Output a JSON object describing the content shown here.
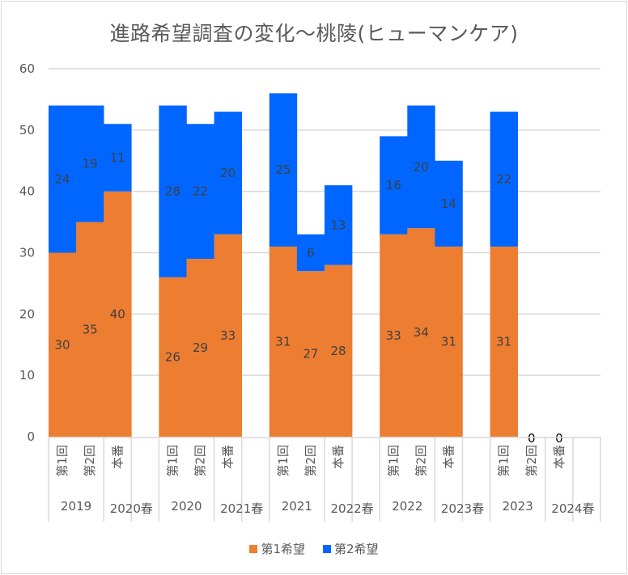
{
  "chart_data": {
    "type": "bar",
    "stacked": true,
    "title": "進路希望調査の変化～桃陵(ヒューマンケア)",
    "xlabel": "",
    "ylabel": "",
    "ylim": [
      0,
      60
    ],
    "yticks": [
      0,
      10,
      20,
      30,
      40,
      50,
      60
    ],
    "grid": true,
    "legend_position": "bottom",
    "groups": [
      {
        "label": "2019",
        "spring_label": "2020春",
        "categories": [
          "第1回",
          "第2回",
          "本番"
        ]
      },
      {
        "label": "2020",
        "spring_label": "2021春",
        "categories": [
          "第1回",
          "第2回",
          "本番"
        ]
      },
      {
        "label": "2021",
        "spring_label": "2022春",
        "categories": [
          "第1回",
          "第2回",
          "本番"
        ]
      },
      {
        "label": "2022",
        "spring_label": "2023春",
        "categories": [
          "第1回",
          "第2回",
          "本番"
        ]
      },
      {
        "label": "2023",
        "spring_label": "2024春",
        "categories": [
          "第1回",
          "第2回",
          "本番"
        ]
      }
    ],
    "series": [
      {
        "name": "第1希望",
        "color": "#ED7D31",
        "values": [
          [
            30,
            35,
            40
          ],
          [
            26,
            29,
            33
          ],
          [
            31,
            27,
            28
          ],
          [
            33,
            34,
            31
          ],
          [
            31,
            null,
            null
          ]
        ]
      },
      {
        "name": "第2希望",
        "color": "#0066FF",
        "values": [
          [
            24,
            19,
            11
          ],
          [
            28,
            22,
            20
          ],
          [
            25,
            6,
            13
          ],
          [
            16,
            20,
            14
          ],
          [
            22,
            null,
            null
          ]
        ]
      }
    ],
    "zero_labels": [
      {
        "group": 4,
        "index": 1,
        "text": "0"
      },
      {
        "group": 4,
        "index": 2,
        "text": "0"
      }
    ]
  },
  "colors": {
    "grid": "#d9d9d9",
    "text": "#595959"
  }
}
